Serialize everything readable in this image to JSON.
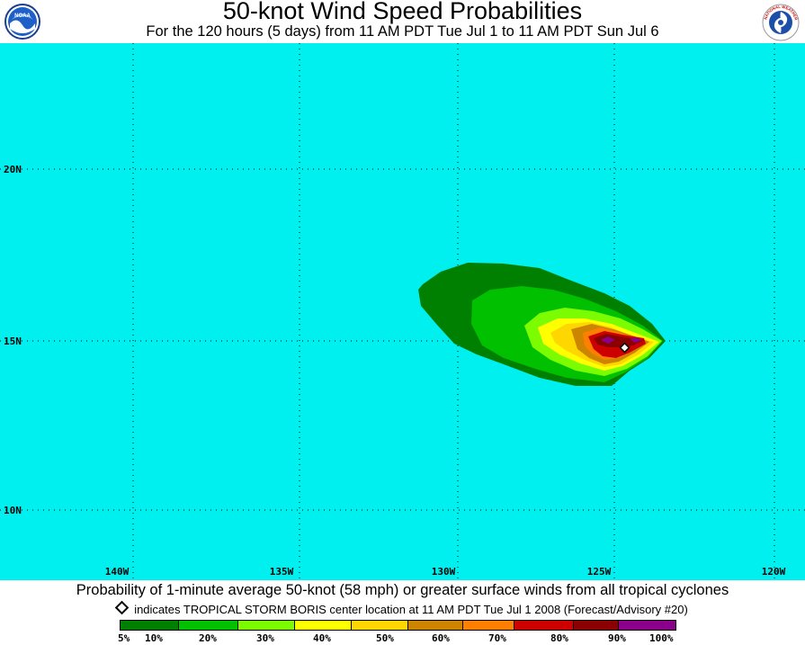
{
  "header": {
    "title": "50-knot Wind Speed Probabilities",
    "subtitle": "For the 120 hours (5 days) from 11 AM PDT Tue Jul 1 to 11 AM PDT Sun Jul 6",
    "left_logo": "NOAA",
    "right_logo_text": "NATIONAL WEATHER SERVICE"
  },
  "map": {
    "background_color": "#00f0f0",
    "grid": "dotted",
    "lat_labels": [
      "20N",
      "15N",
      "10N"
    ],
    "lon_labels": [
      "140W",
      "135W",
      "130W",
      "125W",
      "120W"
    ],
    "storm_marker_icon": "diamond-icon"
  },
  "footer": {
    "caption": "Probability of 1-minute average 50-knot (58 mph) or greater surface winds from all tropical cyclones",
    "marker_note": "indicates TROPICAL STORM BORIS center location at 11 AM PDT Tue Jul 1 2008 (Forecast/Advisory #20)"
  },
  "legend": {
    "colors": [
      "#008000",
      "#00c000",
      "#7cfc00",
      "#ffff00",
      "#ffd700",
      "#cd8500",
      "#ff7f00",
      "#cd0000",
      "#8b0000",
      "#8b008b"
    ],
    "labels": [
      "5%",
      "10%",
      "20%",
      "30%",
      "40%",
      "50%",
      "60%",
      "70%",
      "80%",
      "90%",
      "100%"
    ]
  }
}
